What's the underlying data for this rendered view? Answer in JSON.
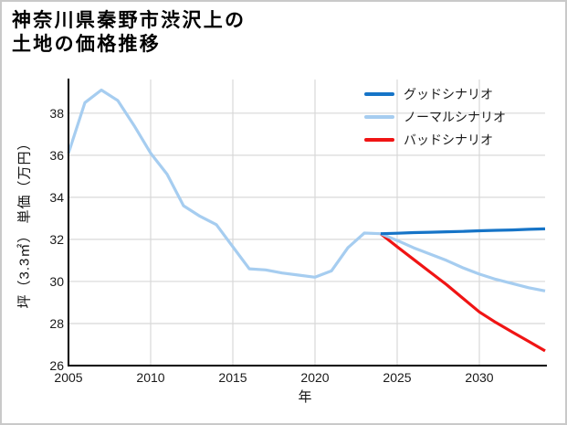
{
  "chart_data": {
    "type": "line",
    "title": "神奈川県秦野市渋沢上の土地の価格推移",
    "title_lines": [
      "神奈川県秦野市渋沢上の",
      "土地の価格推移"
    ],
    "xlabel": "年",
    "ylabel": "坪（3.3㎡） 単価（万円）",
    "xlim": [
      2005,
      2034
    ],
    "ylim": [
      26,
      39.6
    ],
    "x_ticks": [
      2005,
      2010,
      2015,
      2020,
      2025,
      2030
    ],
    "y_ticks": [
      26,
      28,
      30,
      32,
      34,
      36,
      38
    ],
    "grid": true,
    "grid_color": "#d8d8d8",
    "axis_color": "#000000",
    "legend_position": "upper-right",
    "series": [
      {
        "id": "historical",
        "label": "",
        "color": "#a6cdf0",
        "x": [
          2005,
          2006,
          2007,
          2008,
          2009,
          2010,
          2011,
          2012,
          2013,
          2014,
          2015,
          2016,
          2017,
          2018,
          2019,
          2020,
          2021,
          2022,
          2023,
          2024
        ],
        "y": [
          36.1,
          38.5,
          39.1,
          38.6,
          37.4,
          36.1,
          35.1,
          33.6,
          33.1,
          32.7,
          31.65,
          30.6,
          30.55,
          30.4,
          30.3,
          30.2,
          30.5,
          31.6,
          32.3,
          32.27
        ]
      },
      {
        "id": "good-scenario",
        "label": "グッドシナリオ",
        "color": "#1674c7",
        "x": [
          2024,
          2025,
          2026,
          2027,
          2028,
          2029,
          2030,
          2031,
          2032,
          2033,
          2034
        ],
        "y": [
          32.27,
          32.29,
          32.32,
          32.34,
          32.36,
          32.38,
          32.41,
          32.43,
          32.45,
          32.48,
          32.5
        ]
      },
      {
        "id": "normal-scenario",
        "label": "ノーマルシナリオ",
        "color": "#a6cdf0",
        "x": [
          2024,
          2025,
          2026,
          2027,
          2028,
          2029,
          2030,
          2031,
          2032,
          2033,
          2034
        ],
        "y": [
          32.27,
          31.95,
          31.6,
          31.3,
          31.0,
          30.65,
          30.35,
          30.1,
          29.9,
          29.7,
          29.55
        ]
      },
      {
        "id": "bad-scenario",
        "label": "バッドシナリオ",
        "color": "#f01414",
        "x": [
          2024,
          2025,
          2026,
          2027,
          2028,
          2029,
          2030,
          2031,
          2032,
          2033,
          2034
        ],
        "y": [
          32.27,
          31.65,
          31.05,
          30.45,
          29.85,
          29.2,
          28.55,
          28.05,
          27.6,
          27.15,
          26.7
        ]
      }
    ]
  }
}
